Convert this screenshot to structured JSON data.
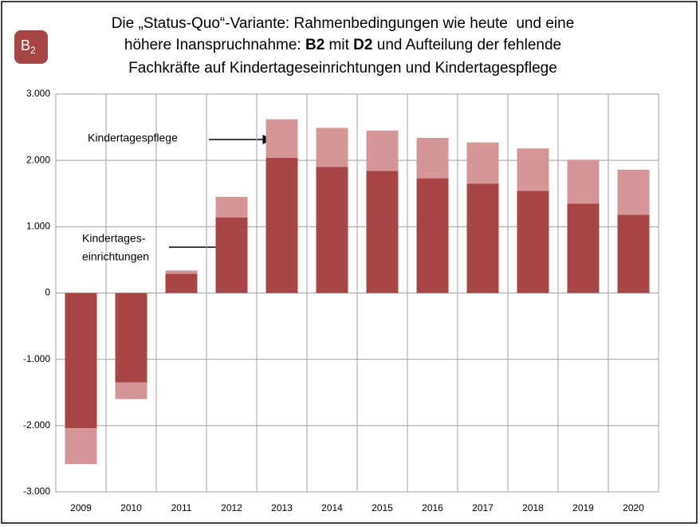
{
  "chart_data": {
    "type": "bar",
    "stacked": true,
    "badge": {
      "text": "B",
      "sub": "2"
    },
    "title_lines": [
      [
        "Die „Status-Quo“-Variante: Rahmenbedingungen wie heute  und eine"
      ],
      [
        "höhere Inanspruchnahme: ",
        "B2",
        " mit ",
        "D2",
        " und Aufteilung der fehlende"
      ],
      [
        "Fachkräfte auf Kindertageseinrichtungen und Kindertagespflege"
      ]
    ],
    "title_bold": [
      [
        false
      ],
      [
        false,
        true,
        false,
        true,
        false
      ],
      [
        false
      ]
    ],
    "categories": [
      "2009",
      "2010",
      "2011",
      "2012",
      "2013",
      "2014",
      "2015",
      "2016",
      "2017",
      "2018",
      "2019",
      "2020"
    ],
    "series": [
      {
        "name": [
          "Kindertages-",
          "einrichtungen"
        ],
        "color": "#a84646",
        "values": [
          -2040,
          -1350,
          290,
          1140,
          2040,
          1900,
          1840,
          1730,
          1650,
          1540,
          1350,
          1180
        ]
      },
      {
        "name": [
          "Kindertagespflege"
        ],
        "color": "#d49696",
        "values": [
          -540,
          -250,
          50,
          310,
          580,
          590,
          610,
          610,
          620,
          640,
          660,
          680
        ]
      }
    ],
    "ylim": [
      -3000,
      3000
    ],
    "yticks": [
      {
        "value": -3000,
        "label": "-3.000"
      },
      {
        "value": -2000,
        "label": "-2.000"
      },
      {
        "value": -1000,
        "label": "-1.000"
      },
      0,
      {
        "value": 1000,
        "label": "1.000"
      },
      {
        "value": 2000,
        "label": "2.000"
      },
      {
        "value": 3000,
        "label": "3.000"
      }
    ],
    "grid": true
  }
}
